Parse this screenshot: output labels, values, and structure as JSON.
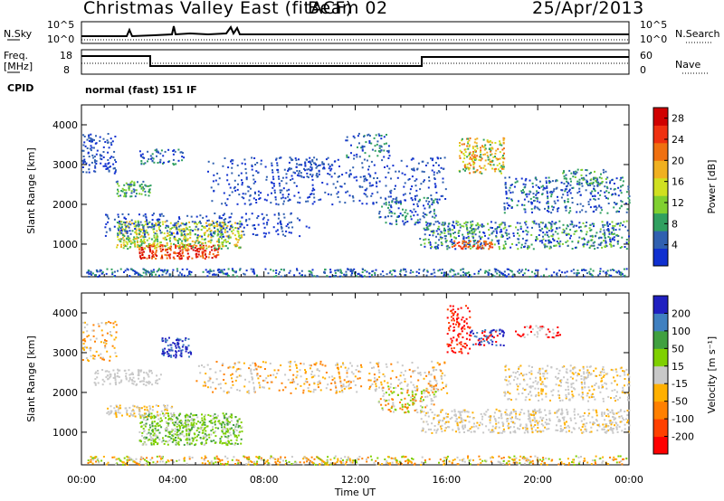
{
  "header": {
    "station": "Christmas Valley East (fitACF)",
    "beam": "Beam 02",
    "date": "25/Apr/2013"
  },
  "noise_panel": {
    "left_label": "N.Sky",
    "right_label": "N.Search",
    "ticks_left": [
      "10^5",
      "10^0"
    ],
    "ticks_right": [
      "10^5",
      "10^0"
    ]
  },
  "freq_panel": {
    "left_label_1": "Freq.",
    "left_label_2": "[MHz]",
    "ticks_left": [
      "18",
      "8"
    ],
    "ticks_right": [
      "60",
      "0"
    ],
    "right_label": "Nave"
  },
  "cpid_panel": {
    "label": "CPID",
    "value": "normal (fast) 151 IF"
  },
  "colors": {
    "velocity_scale": [
      "#ff0000",
      "#ff4000",
      "#ff8000",
      "#ffb000",
      "#c8c8c8",
      "#7fd000",
      "#40a040",
      "#4080c0",
      "#2020c0"
    ],
    "power_scale": [
      "#1030d0",
      "#3060b0",
      "#30a060",
      "#80d030",
      "#d0e020",
      "#f0b020",
      "#f07010",
      "#f03010",
      "#d00000"
    ]
  },
  "chart_data": [
    {
      "type": "heatmap",
      "title": "",
      "xlabel": "",
      "ylabel": "Slant Range [km]",
      "xlim": [
        "00:00",
        "24:00"
      ],
      "ylim": [
        180,
        4500
      ],
      "x_ticks": [
        "00:00",
        "04:00",
        "08:00",
        "12:00",
        "16:00",
        "20:00",
        "00:00"
      ],
      "y_ticks": [
        1000,
        2000,
        3000,
        4000
      ],
      "colorbar_label": "Power [dB]",
      "colorbar_ticks": [
        4,
        8,
        12,
        16,
        20,
        24,
        28
      ],
      "colorbar_range": [
        0,
        30
      ]
    },
    {
      "type": "heatmap",
      "title": "",
      "xlabel": "Time UT",
      "ylabel": "Slant Range [km]",
      "xlim": [
        "00:00",
        "24:00"
      ],
      "ylim": [
        180,
        4500
      ],
      "x_ticks": [
        "00:00",
        "04:00",
        "08:00",
        "12:00",
        "16:00",
        "20:00",
        "00:00"
      ],
      "y_ticks": [
        1000,
        2000,
        3000,
        4000
      ],
      "colorbar_label": "Velocity [m s⁻¹]",
      "colorbar_ticks": [
        200,
        100,
        50,
        15,
        -15,
        -50,
        -100,
        -200
      ],
      "colorbar_range": [
        -250,
        250
      ]
    }
  ]
}
